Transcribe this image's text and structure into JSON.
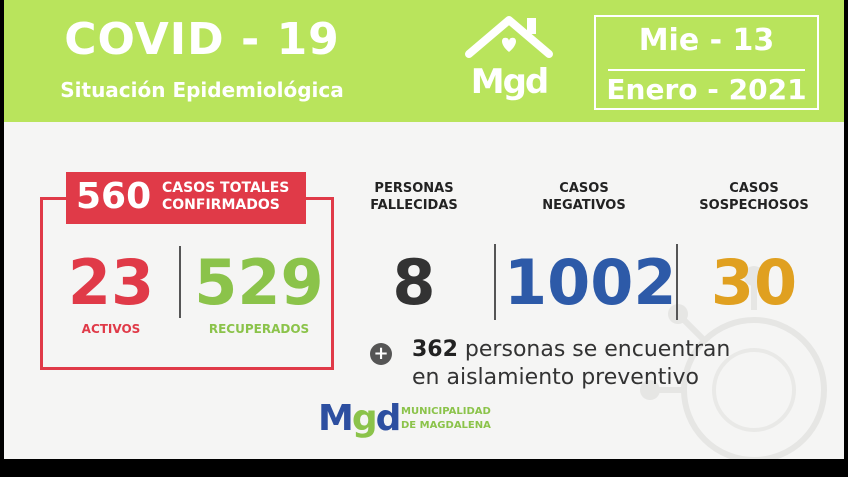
{
  "header": {
    "title": "COVID - 19",
    "subtitle": "Situación Epidemiológica",
    "logo_text": "Mgd",
    "date_day": "Mie - 13",
    "date_month": "Enero - 2021"
  },
  "confirmed": {
    "total": "560",
    "label_line1": "CASOS TOTALES",
    "label_line2": "CONFIRMADOS",
    "active_value": "23",
    "active_label": "ACTIVOS",
    "recovered_value": "529",
    "recovered_label": "RECUPERADOS"
  },
  "stats": {
    "deaths_label_1": "PERSONAS",
    "deaths_label_2": "FALLECIDAS",
    "deaths_value": "8",
    "negative_label_1": "CASOS",
    "negative_label_2": "NEGATIVOS",
    "negative_value": "1002",
    "suspected_label_1": "CASOS",
    "suspected_label_2": "SOSPECHOSOS",
    "suspected_value": "30"
  },
  "note": {
    "count": "362",
    "text_1": " personas se encuentran",
    "text_2": "en aislamiento preventivo"
  },
  "footer": {
    "logo_text_m": "M",
    "logo_text_g": "g",
    "logo_text_d": "d",
    "muni_line1": "MUNICIPALIDAD",
    "muni_line2": "DE MAGDALENA"
  },
  "colors": {
    "header_green": "#b9e45c",
    "red": "#e03a48",
    "green": "#8bc34a",
    "blue": "#2d5aa8",
    "orange": "#e0a020",
    "dark": "#333333"
  }
}
